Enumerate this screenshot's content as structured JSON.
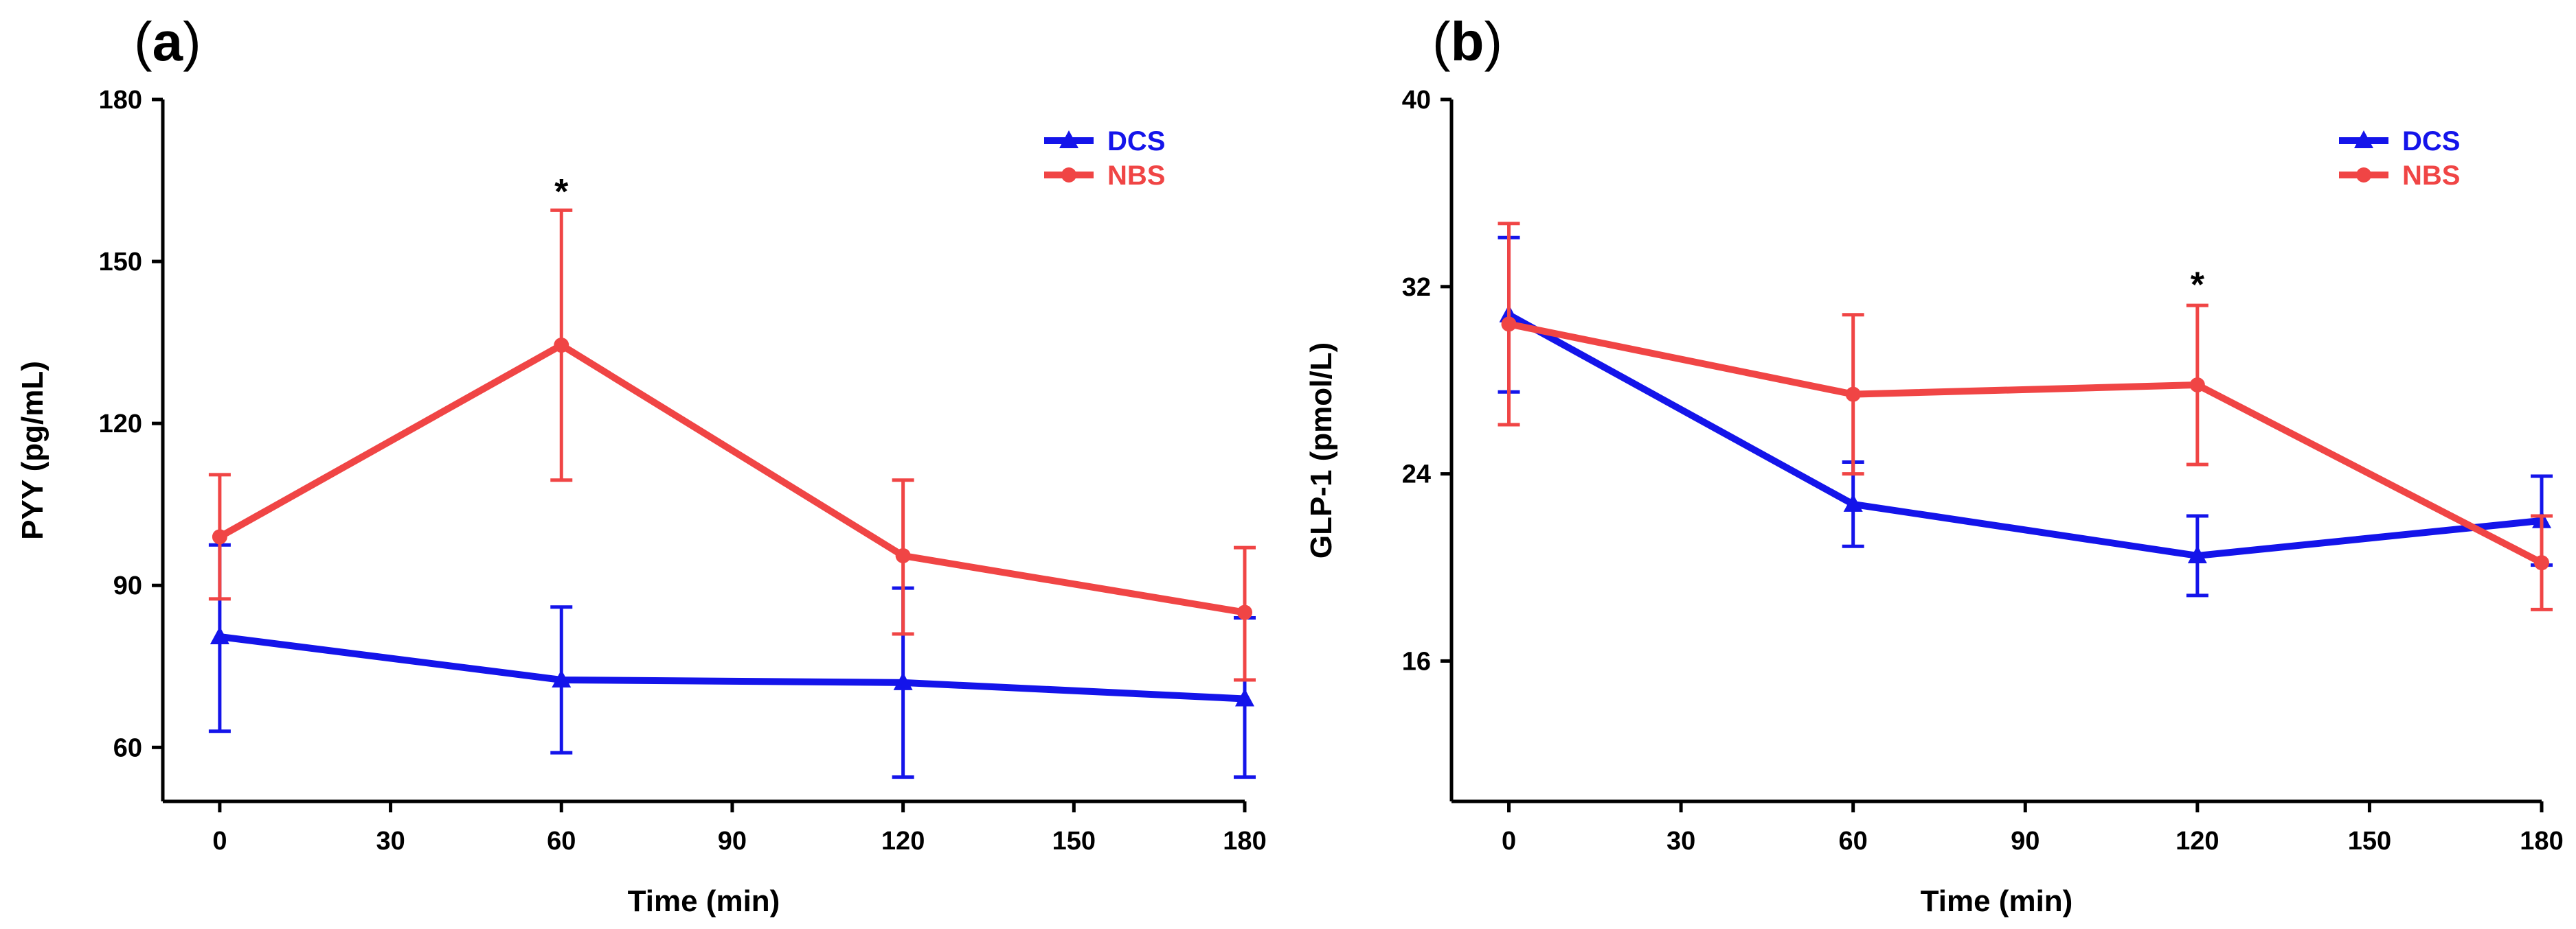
{
  "chart_data": [
    {
      "panel": "a",
      "type": "line",
      "title": "",
      "xlabel": "Time (min)",
      "ylabel": "PYY (pg/mL)",
      "xlim": [
        -10,
        180
      ],
      "ylim": [
        50,
        180
      ],
      "x_ticks": [
        0,
        30,
        60,
        90,
        120,
        150,
        180
      ],
      "y_ticks": [
        60,
        90,
        120,
        150,
        180
      ],
      "grid": false,
      "legend": "top-right",
      "series": [
        {
          "name": "DCS",
          "color": "#1414ea",
          "marker": "triangle",
          "x": [
            0,
            60,
            120,
            180
          ],
          "y": [
            80.5,
            72.5,
            72,
            69
          ],
          "err_upper": [
            97.5,
            86,
            89.5,
            84
          ],
          "err_lower": [
            63,
            59,
            54.5,
            54.5
          ]
        },
        {
          "name": "NBS",
          "color": "#f04545",
          "marker": "circle",
          "x": [
            0,
            60,
            120,
            180
          ],
          "y": [
            99,
            134.5,
            95.5,
            85
          ],
          "err_upper": [
            110.5,
            159.5,
            109.5,
            97
          ],
          "err_lower": [
            87.5,
            109.5,
            81,
            72.5
          ]
        }
      ],
      "annotations": [
        {
          "text": "*",
          "x": 60,
          "y": 163
        }
      ]
    },
    {
      "panel": "b",
      "type": "line",
      "title": "",
      "xlabel": "Time (min)",
      "ylabel": "GLP-1 (pmol/L)",
      "xlim": [
        -10,
        180
      ],
      "ylim": [
        10,
        40
      ],
      "x_ticks": [
        0,
        30,
        60,
        90,
        120,
        150,
        180
      ],
      "y_ticks": [
        16,
        24,
        32,
        40
      ],
      "grid": false,
      "legend": "top-right",
      "series": [
        {
          "name": "DCS",
          "color": "#1414ea",
          "marker": "triangle",
          "x": [
            0,
            60,
            120,
            180
          ],
          "y": [
            30.8,
            22.7,
            20.5,
            22
          ],
          "err_upper": [
            34.1,
            24.5,
            22.2,
            23.9
          ],
          "err_lower": [
            27.5,
            20.9,
            18.8,
            20.1
          ]
        },
        {
          "name": "NBS",
          "color": "#f04545",
          "marker": "circle",
          "x": [
            0,
            60,
            120,
            180
          ],
          "y": [
            30.4,
            27.4,
            27.8,
            20.2
          ],
          "err_upper": [
            34.7,
            30.8,
            31.2,
            22.2
          ],
          "err_lower": [
            26.1,
            24,
            24.4,
            18.2
          ]
        }
      ],
      "annotations": [
        {
          "text": "*",
          "x": 120,
          "y": 32.1
        }
      ]
    }
  ]
}
